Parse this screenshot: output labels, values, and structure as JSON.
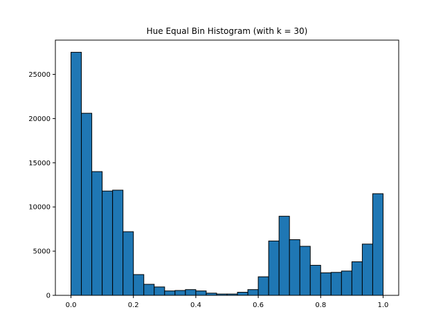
{
  "chart_data": {
    "type": "bar",
    "title": "Hue Equal Bin Histogram (with k = 30)",
    "xlabel": "",
    "ylabel": "",
    "bin_edges_start": 0.0,
    "bin_edges_end": 1.0,
    "bins": 30,
    "values": [
      27500,
      20600,
      14000,
      11800,
      11900,
      7200,
      2350,
      1250,
      950,
      500,
      550,
      650,
      500,
      250,
      150,
      150,
      350,
      650,
      2100,
      6150,
      8950,
      6300,
      5550,
      3400,
      2550,
      2600,
      2750,
      3800,
      5800,
      11500
    ],
    "xlim": [
      -0.05,
      1.05
    ],
    "ylim": [
      0,
      28875
    ],
    "xticks": [
      0.0,
      0.2,
      0.4,
      0.6,
      0.8,
      1.0
    ],
    "xtick_labels": [
      "0.0",
      "0.2",
      "0.4",
      "0.6",
      "0.8",
      "1.0"
    ],
    "yticks": [
      0,
      5000,
      10000,
      15000,
      20000,
      25000
    ],
    "ytick_labels": [
      "0",
      "5000",
      "10000",
      "15000",
      "20000",
      "25000"
    ],
    "bar_color": "#1f77b4",
    "edge_color": "#000000",
    "grid": false
  }
}
